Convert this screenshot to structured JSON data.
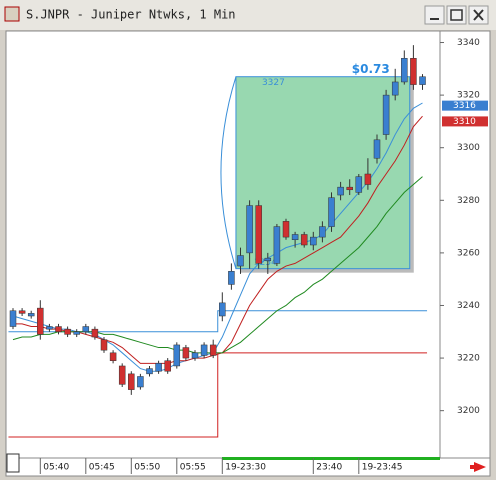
{
  "chart_data": {
    "type": "candlestick",
    "title": "S.JNPR - Juniper Ntwks, 1 Min",
    "categories": [
      null,
      null,
      null,
      "05:40",
      null,
      null,
      null,
      null,
      "05:45",
      null,
      null,
      null,
      null,
      "05:50",
      null,
      null,
      null,
      null,
      "05:55",
      null,
      null,
      null,
      null,
      "19-23:30",
      null,
      null,
      null,
      null,
      null,
      null,
      null,
      null,
      null,
      "23:40",
      null,
      null,
      null,
      null,
      "19-23:45",
      null,
      null,
      null,
      null,
      null,
      null,
      null
    ],
    "open": [
      3232,
      3238,
      3236,
      3239,
      3231,
      3232,
      3231,
      3229,
      3230,
      3231,
      3227,
      3222,
      3217,
      3214,
      3209,
      3214,
      3215,
      3219,
      3217,
      3224,
      3220,
      3221,
      3225,
      3236,
      3248,
      3255,
      3260,
      3278,
      3257,
      3256,
      3272,
      3265,
      3267,
      3263,
      3266,
      3270,
      3282,
      3285,
      3283,
      3290,
      3296,
      3305,
      3320,
      3325,
      3334,
      3324
    ],
    "high": [
      3239,
      3239,
      3238,
      3242,
      3233,
      3233,
      3232,
      3231,
      3233,
      3232,
      3228,
      3223,
      3218,
      3215,
      3214,
      3217,
      3219,
      3220,
      3226,
      3225,
      3223,
      3226,
      3227,
      3245,
      3256,
      3262,
      3280,
      3280,
      3260,
      3271,
      3273,
      3268,
      3268,
      3268,
      3272,
      3283,
      3287,
      3288,
      3290,
      3296,
      3305,
      3322,
      3330,
      3337,
      3339,
      3328
    ],
    "low": [
      3231,
      3236,
      3235,
      3227,
      3230,
      3229,
      3228,
      3228,
      3229,
      3227,
      3222,
      3218,
      3209,
      3206,
      3208,
      3213,
      3214,
      3214,
      3216,
      3219,
      3219,
      3220,
      3220,
      3234,
      3246,
      3252,
      3254,
      3254,
      3252,
      3255,
      3265,
      3262,
      3262,
      3261,
      3264,
      3268,
      3280,
      3282,
      3282,
      3284,
      3294,
      3303,
      3318,
      3324,
      3322,
      3322
    ],
    "close": [
      3238,
      3237,
      3237,
      3229,
      3232,
      3230,
      3229,
      3230,
      3232,
      3228,
      3223,
      3219,
      3210,
      3208,
      3213,
      3216,
      3218,
      3215,
      3225,
      3220,
      3222,
      3225,
      3221,
      3241,
      3253,
      3259,
      3278,
      3256,
      3258,
      3270,
      3266,
      3267,
      3263,
      3266,
      3270,
      3281,
      3285,
      3284,
      3289,
      3286,
      3303,
      3320,
      3325,
      3334,
      3324,
      3327
    ],
    "up_color": "#3a7fd0",
    "down_color": "#d03030",
    "ylim": [
      3182,
      3344
    ],
    "yticks": [
      3200,
      3220,
      3240,
      3260,
      3280,
      3300,
      3320,
      3340
    ],
    "lines": [
      {
        "color": "#3a8fd8",
        "values": [
          3236,
          3235,
          3234,
          3233,
          3232,
          3231,
          3231,
          3230,
          3230,
          3229,
          3227,
          3225,
          3222,
          3219,
          3216,
          3215,
          3215,
          3216,
          3218,
          3219,
          3220,
          3221,
          3222,
          3228,
          3236,
          3244,
          3252,
          3256,
          3258,
          3260,
          3262,
          3263,
          3264,
          3265,
          3267,
          3271,
          3275,
          3279,
          3283,
          3287,
          3292,
          3298,
          3305,
          3311,
          3315,
          3317
        ]
      },
      {
        "color": "#c02020",
        "values": [
          3233,
          3233,
          3232,
          3232,
          3231,
          3231,
          3230,
          3230,
          3229,
          3228,
          3227,
          3226,
          3224,
          3221,
          3218,
          3218,
          3218,
          3218,
          3219,
          3219,
          3220,
          3220,
          3221,
          3222,
          3226,
          3233,
          3240,
          3245,
          3250,
          3253,
          3255,
          3256,
          3258,
          3260,
          3262,
          3264,
          3266,
          3270,
          3274,
          3279,
          3285,
          3290,
          3295,
          3301,
          3308,
          3312
        ]
      },
      {
        "color": "#208a20",
        "values": [
          3227,
          3228,
          3228,
          3229,
          3229,
          3230,
          3230,
          3230,
          3230,
          3230,
          3229,
          3229,
          3228,
          3227,
          3226,
          3225,
          3224,
          3224,
          3223,
          3223,
          3222,
          3222,
          3222,
          3222,
          3224,
          3226,
          3229,
          3232,
          3235,
          3238,
          3240,
          3243,
          3245,
          3248,
          3250,
          3253,
          3256,
          3259,
          3262,
          3266,
          3270,
          3275,
          3279,
          3283,
          3286,
          3289
        ]
      }
    ],
    "levels": [
      {
        "color": "#3a8fd8",
        "values": [
          3230,
          3230,
          3230,
          3230,
          3230,
          3230,
          3230,
          3230,
          3230,
          3230,
          3230,
          3230,
          3230,
          3230,
          3230,
          3230,
          3230,
          3230,
          3230,
          3230,
          3230,
          3230,
          3230,
          3238,
          3238,
          3238,
          3238,
          3238,
          3238,
          3238,
          3238,
          3238,
          3238,
          3238,
          3238,
          3238,
          3238,
          3238,
          3238,
          3238,
          3238,
          3238,
          3238,
          3238,
          3238,
          3238
        ]
      },
      {
        "color": "#d02020",
        "values": [
          3190,
          3190,
          3190,
          3190,
          3190,
          3190,
          3190,
          3190,
          3190,
          3190,
          3190,
          3190,
          3190,
          3190,
          3190,
          3190,
          3190,
          3190,
          3190,
          3190,
          3190,
          3190,
          3190,
          3222,
          3222,
          3222,
          3222,
          3222,
          3222,
          3222,
          3222,
          3222,
          3222,
          3222,
          3222,
          3222,
          3222,
          3222,
          3222,
          3222,
          3222,
          3222,
          3222,
          3222,
          3222,
          3222
        ]
      }
    ],
    "box": {
      "top": 3327,
      "bottom": 3254,
      "change": "$0.73",
      "color": "#98d8b0"
    },
    "price_flags": [
      {
        "value": 3316,
        "color": "#3a7fd0"
      },
      {
        "value": 3310,
        "color": "#d03030"
      }
    ]
  }
}
